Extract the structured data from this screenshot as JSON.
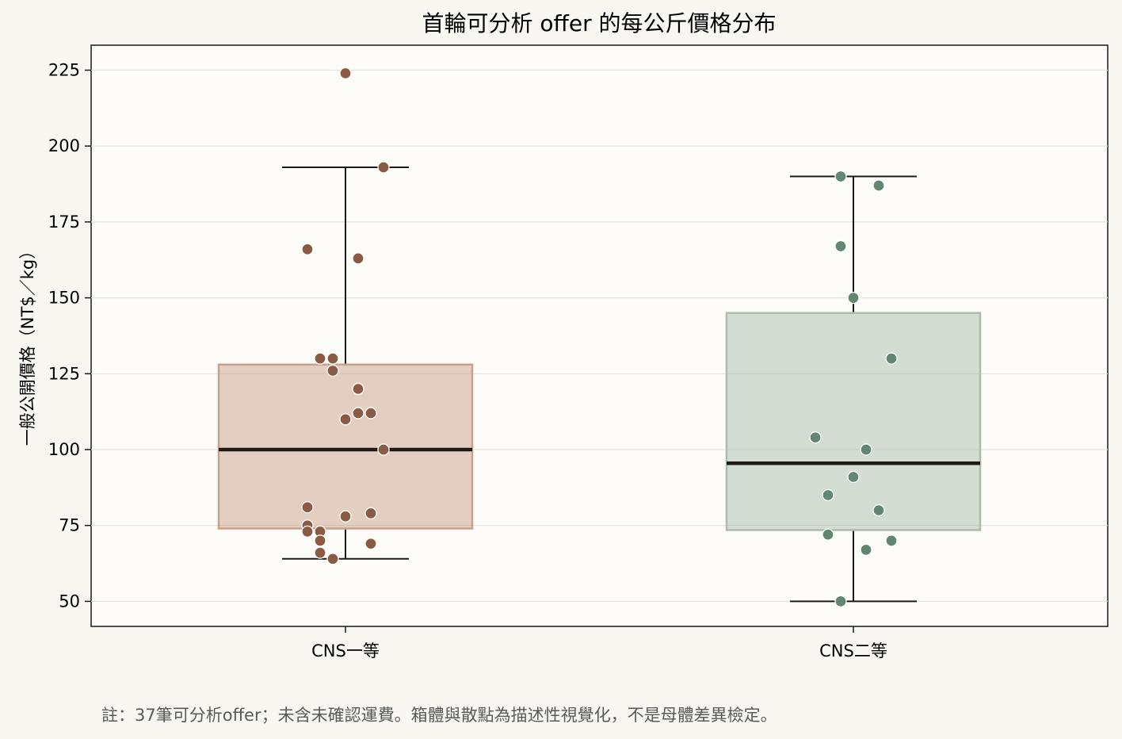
{
  "chart_data": {
    "type": "box",
    "title": "首輪可分析 offer 的每公斤價格分布",
    "xlabel": "",
    "ylabel": "一般公開價格（NT$／kg）",
    "ylim": [
      42,
      232
    ],
    "yticks": [
      50,
      75,
      100,
      125,
      150,
      175,
      200,
      225
    ],
    "grid": "y",
    "categories": [
      "CNS一等",
      "CNS二等"
    ],
    "colors": {
      "CNS一等": {
        "box": "#c9a08a",
        "point": "#8b5a42"
      },
      "CNS二等": {
        "box": "#a9bdaa",
        "point": "#628770"
      }
    },
    "boxes": [
      {
        "category": "CNS一等",
        "whisker_low": 64,
        "q1": 74,
        "median": 100,
        "q3": 128,
        "whisker_high": 193
      },
      {
        "category": "CNS二等",
        "whisker_low": 50,
        "q1": 73.5,
        "median": 95.5,
        "q3": 145,
        "whisker_high": 190
      }
    ],
    "points": [
      {
        "category": "CNS一等",
        "values": [
          224,
          193,
          166,
          163,
          130,
          130,
          126,
          120,
          112,
          112,
          110,
          100,
          100,
          81,
          79,
          78,
          75,
          73,
          73,
          70,
          69,
          66,
          64
        ]
      },
      {
        "category": "CNS二等",
        "values": [
          190,
          187,
          167,
          150,
          130,
          104,
          100,
          91,
          85,
          80,
          72,
          70,
          67,
          50
        ]
      }
    ]
  },
  "note": "註：37筆可分析offer；未含未確認運費。箱體與散點為描述性視覺化，不是母體差異檢定。"
}
